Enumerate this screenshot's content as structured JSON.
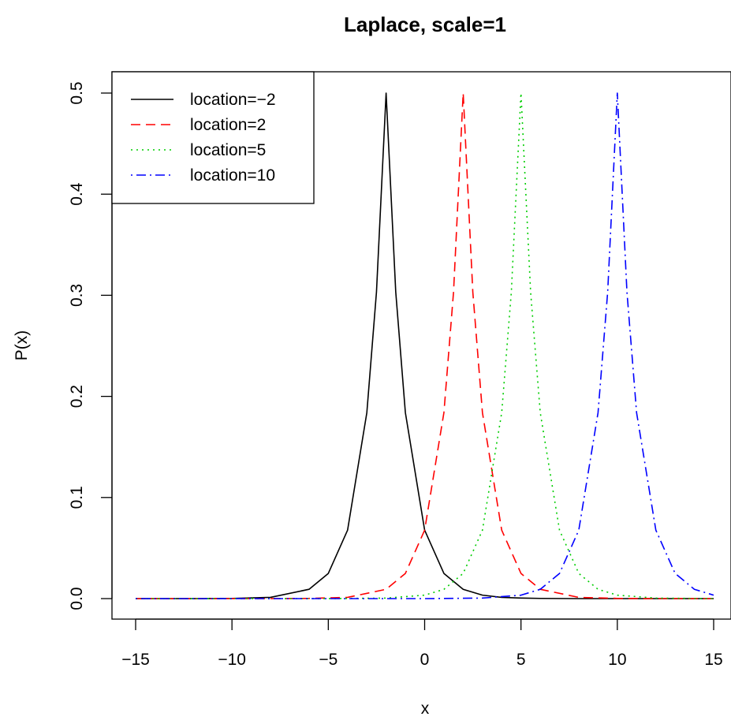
{
  "chart_data": {
    "type": "line",
    "title": "Laplace, scale=1",
    "xlabel": "x",
    "ylabel": "P(x)",
    "xlim": [
      -15,
      15
    ],
    "ylim": [
      0,
      0.5
    ],
    "xticks": [
      {
        "value": -15,
        "label": "−15"
      },
      {
        "value": -10,
        "label": "−10"
      },
      {
        "value": -5,
        "label": "−5"
      },
      {
        "value": 0,
        "label": "0"
      },
      {
        "value": 5,
        "label": "5"
      },
      {
        "value": 10,
        "label": "10"
      },
      {
        "value": 15,
        "label": "15"
      }
    ],
    "yticks": [
      {
        "value": 0.0,
        "label": "0.0"
      },
      {
        "value": 0.1,
        "label": "0.1"
      },
      {
        "value": 0.2,
        "label": "0.2"
      },
      {
        "value": 0.3,
        "label": "0.3"
      },
      {
        "value": 0.4,
        "label": "0.4"
      },
      {
        "value": 0.5,
        "label": "0.5"
      }
    ],
    "grid": false,
    "legend_position": "top-left",
    "series": [
      {
        "name": "location=−2",
        "color": "#000000",
        "dash": "solid",
        "x": [
          -15,
          -12,
          -10,
          -8,
          -6,
          -5,
          -4,
          -3,
          -2.5,
          -2,
          -1.5,
          -1,
          0,
          1,
          2,
          3,
          4,
          5,
          6,
          8,
          10,
          12,
          15
        ],
        "y": [
          0.0,
          0.0,
          0.0002,
          0.0012,
          0.0092,
          0.0249,
          0.0677,
          0.1839,
          0.3033,
          0.5,
          0.3033,
          0.1839,
          0.0677,
          0.0249,
          0.0092,
          0.0034,
          0.0012,
          0.0005,
          0.0002,
          0.0,
          0.0,
          0.0,
          0.0
        ]
      },
      {
        "name": "location=2",
        "color": "#ff0000",
        "dash": "dashed",
        "x": [
          -15,
          -10,
          -8,
          -6,
          -4,
          -2,
          -1,
          0,
          1,
          1.5,
          2,
          2.5,
          3,
          4,
          5,
          6,
          8,
          10,
          12,
          15
        ],
        "y": [
          0.0,
          0.0,
          0.0,
          0.0002,
          0.0012,
          0.0092,
          0.0249,
          0.0677,
          0.1839,
          0.3033,
          0.5,
          0.3033,
          0.1839,
          0.0677,
          0.0249,
          0.0092,
          0.0012,
          0.0002,
          0.0,
          0.0
        ]
      },
      {
        "name": "location=5",
        "color": "#00cd00",
        "dash": "dotted",
        "x": [
          -15,
          -10,
          -5,
          -2,
          0,
          1,
          2,
          3,
          4,
          4.5,
          5,
          5.5,
          6,
          7,
          8,
          9,
          10,
          12,
          15
        ],
        "y": [
          0.0,
          0.0,
          0.0,
          0.0005,
          0.0034,
          0.0092,
          0.0249,
          0.0677,
          0.1839,
          0.3033,
          0.5,
          0.3033,
          0.1839,
          0.0677,
          0.0249,
          0.0092,
          0.0034,
          0.0005,
          0.0
        ]
      },
      {
        "name": "location=10",
        "color": "#0000ff",
        "dash": "dotdash",
        "x": [
          -15,
          -5,
          0,
          3,
          5,
          6,
          7,
          8,
          9,
          9.5,
          10,
          10.5,
          11,
          12,
          13,
          14,
          15
        ],
        "y": [
          0.0,
          0.0,
          0.0,
          0.0005,
          0.0034,
          0.0092,
          0.0249,
          0.0677,
          0.1839,
          0.3033,
          0.5,
          0.3033,
          0.1839,
          0.0677,
          0.0249,
          0.0092,
          0.0034
        ]
      }
    ]
  }
}
